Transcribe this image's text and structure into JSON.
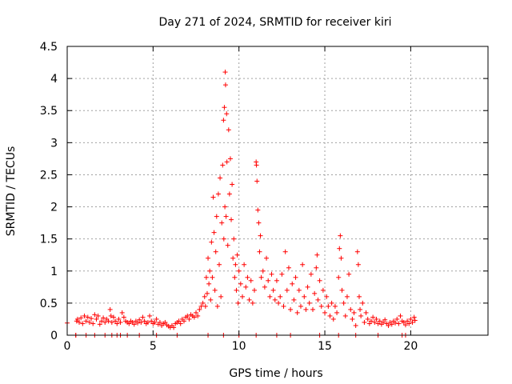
{
  "chart_data": {
    "type": "scatter",
    "title": "Day 271 of 2024, SRMTID for receiver kiri",
    "xlabel": "GPS time / hours",
    "ylabel": "SRMTID / TECUs",
    "xlim": [
      0,
      24.5
    ],
    "ylim": [
      0,
      4.5
    ],
    "x_ticks": [
      0,
      5,
      10,
      15,
      20
    ],
    "x_tick_labels": [
      "0",
      "5",
      "10",
      "15",
      "20"
    ],
    "y_ticks": [
      0,
      0.5,
      1,
      1.5,
      2,
      2.5,
      3,
      3.5,
      4,
      4.5
    ],
    "y_tick_labels": [
      "0",
      "0.5",
      "1",
      "1.5",
      "2",
      "2.5",
      "3",
      "3.5",
      "4",
      "4.5"
    ],
    "grid": true,
    "marker": "+",
    "color": "#ff0000",
    "series": [
      {
        "name": "SRMTID",
        "points": [
          [
            0.0,
            0.19
          ],
          [
            0.5,
            0.0
          ],
          [
            0.55,
            0.22
          ],
          [
            0.6,
            0.25
          ],
          [
            0.7,
            0.2
          ],
          [
            0.8,
            0.27
          ],
          [
            0.9,
            0.18
          ],
          [
            1.0,
            0.3
          ],
          [
            1.1,
            0.22
          ],
          [
            1.2,
            0.28
          ],
          [
            1.3,
            0.2
          ],
          [
            1.4,
            0.26
          ],
          [
            1.5,
            0.18
          ],
          [
            1.6,
            0.32
          ],
          [
            1.7,
            0.25
          ],
          [
            1.8,
            0.3
          ],
          [
            1.9,
            0.17
          ],
          [
            2.0,
            0.22
          ],
          [
            2.1,
            0.27
          ],
          [
            2.2,
            0.2
          ],
          [
            2.3,
            0.25
          ],
          [
            2.4,
            0.22
          ],
          [
            2.5,
            0.4
          ],
          [
            2.55,
            0.3
          ],
          [
            2.6,
            0.2
          ],
          [
            2.7,
            0.28
          ],
          [
            2.8,
            0.22
          ],
          [
            2.9,
            0.18
          ],
          [
            3.0,
            0.25
          ],
          [
            3.1,
            0.2
          ],
          [
            3.2,
            0.35
          ],
          [
            3.3,
            0.28
          ],
          [
            3.4,
            0.22
          ],
          [
            3.5,
            0.2
          ],
          [
            3.6,
            0.18
          ],
          [
            3.7,
            0.22
          ],
          [
            3.8,
            0.2
          ],
          [
            3.9,
            0.17
          ],
          [
            4.0,
            0.22
          ],
          [
            4.1,
            0.19
          ],
          [
            4.2,
            0.24
          ],
          [
            4.3,
            0.2
          ],
          [
            4.4,
            0.28
          ],
          [
            4.5,
            0.22
          ],
          [
            4.6,
            0.18
          ],
          [
            4.7,
            0.2
          ],
          [
            4.8,
            0.3
          ],
          [
            4.9,
            0.22
          ],
          [
            5.0,
            0.18
          ],
          [
            5.1,
            0.2
          ],
          [
            5.2,
            0.25
          ],
          [
            5.3,
            0.17
          ],
          [
            5.4,
            0.2
          ],
          [
            5.5,
            0.15
          ],
          [
            5.6,
            0.18
          ],
          [
            5.7,
            0.2
          ],
          [
            5.8,
            0.16
          ],
          [
            5.9,
            0.14
          ],
          [
            6.0,
            0.12
          ],
          [
            6.1,
            0.15
          ],
          [
            6.2,
            0.12
          ],
          [
            6.3,
            0.18
          ],
          [
            6.4,
            0.2
          ],
          [
            6.5,
            0.22
          ],
          [
            6.6,
            0.18
          ],
          [
            6.7,
            0.25
          ],
          [
            6.8,
            0.22
          ],
          [
            6.9,
            0.28
          ],
          [
            7.0,
            0.3
          ],
          [
            7.1,
            0.25
          ],
          [
            7.2,
            0.32
          ],
          [
            7.3,
            0.3
          ],
          [
            7.4,
            0.28
          ],
          [
            7.5,
            0.35
          ],
          [
            7.6,
            0.3
          ],
          [
            7.7,
            0.4
          ],
          [
            7.8,
            0.45
          ],
          [
            7.9,
            0.5
          ],
          [
            8.0,
            0.6
          ],
          [
            8.05,
            0.45
          ],
          [
            8.1,
            0.9
          ],
          [
            8.15,
            0.65
          ],
          [
            8.2,
            1.2
          ],
          [
            8.25,
            0.8
          ],
          [
            8.3,
            1.0
          ],
          [
            8.35,
            0.55
          ],
          [
            8.4,
            1.45
          ],
          [
            8.45,
            0.9
          ],
          [
            8.5,
            2.15
          ],
          [
            8.55,
            1.6
          ],
          [
            8.6,
            0.7
          ],
          [
            8.65,
            1.3
          ],
          [
            8.7,
            1.85
          ],
          [
            8.75,
            0.45
          ],
          [
            8.8,
            2.2
          ],
          [
            8.85,
            1.1
          ],
          [
            8.9,
            2.45
          ],
          [
            8.95,
            0.6
          ],
          [
            9.0,
            1.75
          ],
          [
            9.05,
            2.65
          ],
          [
            9.1,
            3.35
          ],
          [
            9.12,
            1.5
          ],
          [
            9.15,
            3.55
          ],
          [
            9.18,
            2.0
          ],
          [
            9.2,
            4.1
          ],
          [
            9.22,
            3.9
          ],
          [
            9.25,
            1.85
          ],
          [
            9.28,
            3.45
          ],
          [
            9.3,
            2.7
          ],
          [
            9.35,
            1.4
          ],
          [
            9.4,
            3.2
          ],
          [
            9.45,
            2.2
          ],
          [
            9.5,
            2.75
          ],
          [
            9.55,
            1.8
          ],
          [
            9.6,
            2.35
          ],
          [
            9.65,
            1.2
          ],
          [
            9.7,
            1.5
          ],
          [
            9.75,
            0.9
          ],
          [
            9.8,
            1.1
          ],
          [
            9.85,
            0.7
          ],
          [
            9.9,
            1.25
          ],
          [
            9.95,
            0.5
          ],
          [
            10.0,
            1.0
          ],
          [
            10.1,
            0.8
          ],
          [
            10.2,
            0.6
          ],
          [
            10.3,
            1.1
          ],
          [
            10.4,
            0.75
          ],
          [
            10.5,
            0.9
          ],
          [
            10.6,
            0.55
          ],
          [
            10.7,
            0.85
          ],
          [
            10.8,
            0.5
          ],
          [
            10.9,
            0.7
          ],
          [
            11.0,
            2.7
          ],
          [
            11.02,
            2.65
          ],
          [
            11.05,
            2.4
          ],
          [
            11.1,
            1.95
          ],
          [
            11.15,
            1.75
          ],
          [
            11.2,
            1.3
          ],
          [
            11.25,
            1.55
          ],
          [
            11.3,
            0.9
          ],
          [
            11.4,
            1.0
          ],
          [
            11.5,
            0.75
          ],
          [
            11.6,
            1.2
          ],
          [
            11.7,
            0.85
          ],
          [
            11.8,
            0.6
          ],
          [
            11.9,
            0.95
          ],
          [
            12.0,
            0.7
          ],
          [
            12.1,
            0.55
          ],
          [
            12.2,
            0.85
          ],
          [
            12.3,
            0.5
          ],
          [
            12.4,
            0.6
          ],
          [
            12.5,
            0.95
          ],
          [
            12.6,
            0.45
          ],
          [
            12.7,
            1.3
          ],
          [
            12.8,
            0.7
          ],
          [
            12.9,
            1.05
          ],
          [
            13.0,
            0.4
          ],
          [
            13.1,
            0.8
          ],
          [
            13.2,
            0.55
          ],
          [
            13.3,
            0.9
          ],
          [
            13.4,
            0.35
          ],
          [
            13.5,
            0.7
          ],
          [
            13.6,
            0.45
          ],
          [
            13.7,
            1.1
          ],
          [
            13.8,
            0.6
          ],
          [
            13.9,
            0.4
          ],
          [
            14.0,
            0.75
          ],
          [
            14.1,
            0.5
          ],
          [
            14.2,
            0.95
          ],
          [
            14.3,
            0.4
          ],
          [
            14.4,
            0.65
          ],
          [
            14.5,
            1.05
          ],
          [
            14.55,
            1.25
          ],
          [
            14.6,
            0.55
          ],
          [
            14.7,
            0.85
          ],
          [
            14.8,
            0.45
          ],
          [
            14.9,
            0.7
          ],
          [
            15.0,
            0.35
          ],
          [
            15.1,
            0.6
          ],
          [
            15.2,
            0.45
          ],
          [
            15.3,
            0.3
          ],
          [
            15.4,
            0.5
          ],
          [
            15.5,
            0.25
          ],
          [
            15.6,
            0.45
          ],
          [
            15.7,
            0.35
          ],
          [
            15.8,
            0.9
          ],
          [
            15.85,
            1.35
          ],
          [
            15.9,
            1.55
          ],
          [
            15.95,
            1.2
          ],
          [
            16.0,
            0.7
          ],
          [
            16.1,
            0.5
          ],
          [
            16.2,
            0.3
          ],
          [
            16.3,
            0.6
          ],
          [
            16.4,
            0.95
          ],
          [
            16.5,
            0.4
          ],
          [
            16.6,
            0.25
          ],
          [
            16.7,
            0.35
          ],
          [
            16.8,
            0.15
          ],
          [
            16.9,
            1.3
          ],
          [
            16.95,
            1.1
          ],
          [
            17.0,
            0.6
          ],
          [
            17.05,
            0.4
          ],
          [
            17.1,
            0.3
          ],
          [
            17.2,
            0.5
          ],
          [
            17.3,
            0.2
          ],
          [
            17.4,
            0.35
          ],
          [
            17.5,
            0.25
          ],
          [
            17.6,
            0.18
          ],
          [
            17.7,
            0.22
          ],
          [
            17.8,
            0.28
          ],
          [
            17.9,
            0.2
          ],
          [
            18.0,
            0.25
          ],
          [
            18.1,
            0.18
          ],
          [
            18.2,
            0.22
          ],
          [
            18.3,
            0.17
          ],
          [
            18.4,
            0.2
          ],
          [
            18.5,
            0.24
          ],
          [
            18.6,
            0.18
          ],
          [
            18.7,
            0.15
          ],
          [
            18.8,
            0.2
          ],
          [
            18.9,
            0.17
          ],
          [
            19.0,
            0.22
          ],
          [
            19.1,
            0.19
          ],
          [
            19.2,
            0.25
          ],
          [
            19.3,
            0.18
          ],
          [
            19.4,
            0.3
          ],
          [
            19.5,
            0.22
          ],
          [
            19.6,
            0.2
          ],
          [
            19.7,
            0.16
          ],
          [
            19.8,
            0.22
          ],
          [
            19.9,
            0.18
          ],
          [
            20.0,
            0.25
          ],
          [
            20.1,
            0.2
          ],
          [
            20.2,
            0.28
          ],
          [
            20.25,
            0.23
          ],
          [
            0.5,
            0.0
          ],
          [
            1.1,
            0.0
          ],
          [
            1.6,
            0.0
          ],
          [
            2.2,
            0.0
          ],
          [
            2.6,
            0.0
          ],
          [
            2.9,
            0.0
          ],
          [
            3.1,
            0.0
          ],
          [
            3.5,
            0.0
          ],
          [
            4.2,
            0.0
          ],
          [
            5.2,
            0.0
          ],
          [
            6.4,
            0.0
          ],
          [
            8.2,
            0.0
          ],
          [
            9.1,
            0.0
          ],
          [
            10.0,
            0.0
          ],
          [
            11.0,
            0.0
          ],
          [
            12.2,
            0.0
          ],
          [
            13.0,
            0.0
          ],
          [
            14.7,
            0.0
          ],
          [
            15.8,
            0.0
          ],
          [
            16.8,
            0.0
          ],
          [
            18.1,
            0.0
          ],
          [
            19.5,
            0.0
          ],
          [
            19.7,
            0.0
          ]
        ]
      }
    ]
  }
}
